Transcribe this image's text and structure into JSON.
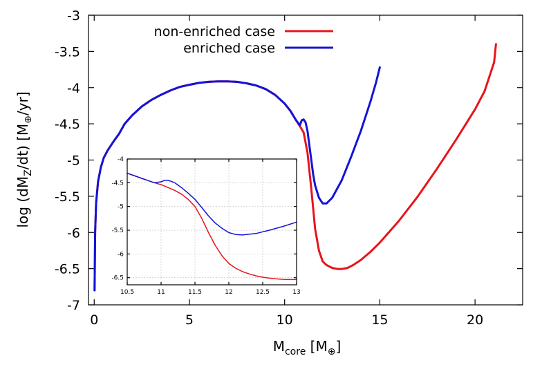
{
  "chart_data": [
    {
      "type": "line",
      "panel": "main",
      "xlabel_main": "M",
      "xlabel_sub": "core",
      "xlabel_unit_open": " [M",
      "xlabel_unit_sub": "⊕",
      "xlabel_unit_close": "]",
      "ylabel_open": "log (dM",
      "ylabel_sub1": "Z",
      "ylabel_mid": "/dt) [M",
      "ylabel_sub2": "⊕",
      "ylabel_close": "/yr]",
      "xlim": [
        -0.3,
        22.5
      ],
      "ylim": [
        -7,
        -3
      ],
      "xticks": [
        0,
        5,
        10,
        15,
        20
      ],
      "xtick_labels": [
        "0",
        "5",
        "10",
        "15",
        "20"
      ],
      "yticks": [
        -7,
        -6.5,
        -6,
        -5.5,
        -5,
        -4.5,
        -4,
        -3.5,
        -3
      ],
      "ytick_labels": [
        "-7",
        "-6.5",
        "-6",
        "-5.5",
        "-5",
        "-4.5",
        "-4",
        "-3.5",
        "-3"
      ],
      "legend_position": "top-left",
      "series": [
        {
          "name": "non-enriched case",
          "color": "#e8141b",
          "x": [
            0.02,
            0.05,
            0.1,
            0.2,
            0.35,
            0.5,
            0.7,
            1.0,
            1.3,
            1.6,
            2.0,
            2.5,
            3.0,
            3.5,
            4.0,
            4.5,
            5.0,
            5.5,
            6.0,
            6.5,
            7.0,
            7.5,
            8.0,
            8.5,
            9.0,
            9.5,
            10.0,
            10.3,
            10.6,
            10.8,
            11.0,
            11.2,
            11.4,
            11.6,
            11.8,
            12.0,
            12.2,
            12.5,
            12.8,
            13.0,
            13.3,
            13.6,
            14.0,
            14.5,
            15.0,
            16.0,
            17.0,
            18.0,
            19.0,
            20.0,
            20.5,
            21.0,
            21.1
          ],
          "y": [
            -6.8,
            -6.0,
            -5.6,
            -5.3,
            -5.1,
            -4.97,
            -4.87,
            -4.75,
            -4.64,
            -4.5,
            -4.38,
            -4.26,
            -4.17,
            -4.1,
            -4.04,
            -3.99,
            -3.96,
            -3.935,
            -3.92,
            -3.915,
            -3.915,
            -3.92,
            -3.94,
            -3.97,
            -4.02,
            -4.1,
            -4.22,
            -4.32,
            -4.45,
            -4.53,
            -4.62,
            -4.9,
            -5.4,
            -5.95,
            -6.25,
            -6.4,
            -6.45,
            -6.49,
            -6.505,
            -6.505,
            -6.49,
            -6.45,
            -6.38,
            -6.27,
            -6.14,
            -5.84,
            -5.5,
            -5.12,
            -4.72,
            -4.3,
            -4.05,
            -3.65,
            -3.4
          ]
        },
        {
          "name": "enriched case",
          "color": "#1414d6",
          "x": [
            0.02,
            0.05,
            0.1,
            0.2,
            0.35,
            0.5,
            0.7,
            1.0,
            1.3,
            1.6,
            2.0,
            2.5,
            3.0,
            3.5,
            4.0,
            4.5,
            5.0,
            5.5,
            6.0,
            6.5,
            7.0,
            7.5,
            8.0,
            8.5,
            9.0,
            9.5,
            10.0,
            10.3,
            10.6,
            10.8,
            10.9,
            11.0,
            11.1,
            11.2,
            11.3,
            11.4,
            11.5,
            11.6,
            11.8,
            12.0,
            12.2,
            12.5,
            13.0,
            13.5,
            14.0,
            14.5,
            14.8,
            15.0
          ],
          "y": [
            -6.8,
            -6.0,
            -5.6,
            -5.3,
            -5.1,
            -4.97,
            -4.87,
            -4.75,
            -4.64,
            -4.5,
            -4.38,
            -4.26,
            -4.17,
            -4.1,
            -4.04,
            -3.99,
            -3.96,
            -3.935,
            -3.92,
            -3.915,
            -3.915,
            -3.92,
            -3.94,
            -3.97,
            -4.02,
            -4.1,
            -4.22,
            -4.32,
            -4.45,
            -4.52,
            -4.45,
            -4.44,
            -4.48,
            -4.6,
            -4.8,
            -5.0,
            -5.2,
            -5.35,
            -5.52,
            -5.6,
            -5.6,
            -5.52,
            -5.28,
            -4.95,
            -4.6,
            -4.2,
            -3.93,
            -3.72
          ]
        }
      ]
    },
    {
      "type": "line",
      "panel": "inset",
      "xlim": [
        10.5,
        13
      ],
      "ylim": [
        -6.65,
        -4
      ],
      "xticks": [
        10.5,
        11,
        11.5,
        12,
        12.5,
        13
      ],
      "xtick_labels": [
        "10.5",
        "11",
        "11.5",
        "12",
        "12.5",
        "13"
      ],
      "yticks": [
        -6.5,
        -6,
        -5.5,
        -5,
        -4.5,
        -4
      ],
      "ytick_labels": [
        "-6.5",
        "-6",
        "-5.5",
        "-5",
        "-4.5",
        "-4"
      ],
      "grid": true,
      "series": [
        {
          "name": "non-enriched case",
          "color": "#e8141b",
          "x": [
            10.5,
            10.6,
            10.7,
            10.8,
            10.9,
            11.0,
            11.1,
            11.2,
            11.3,
            11.4,
            11.5,
            11.6,
            11.7,
            11.8,
            11.9,
            12.0,
            12.1,
            12.2,
            12.3,
            12.4,
            12.5,
            12.6,
            12.7,
            12.8,
            12.9,
            13.0
          ],
          "y": [
            -4.3,
            -4.35,
            -4.4,
            -4.45,
            -4.5,
            -4.54,
            -4.6,
            -4.66,
            -4.74,
            -4.85,
            -5.0,
            -5.25,
            -5.55,
            -5.82,
            -6.04,
            -6.2,
            -6.3,
            -6.37,
            -6.42,
            -6.46,
            -6.49,
            -6.51,
            -6.525,
            -6.535,
            -6.54,
            -6.54
          ]
        },
        {
          "name": "enriched case",
          "color": "#1414d6",
          "x": [
            10.5,
            10.6,
            10.7,
            10.8,
            10.9,
            11.0,
            11.05,
            11.1,
            11.15,
            11.2,
            11.3,
            11.4,
            11.5,
            11.6,
            11.7,
            11.8,
            11.9,
            12.0,
            12.1,
            12.2,
            12.4,
            12.6,
            12.8,
            13.0
          ],
          "y": [
            -4.3,
            -4.35,
            -4.4,
            -4.45,
            -4.5,
            -4.48,
            -4.45,
            -4.45,
            -4.47,
            -4.5,
            -4.6,
            -4.72,
            -4.85,
            -5.02,
            -5.2,
            -5.35,
            -5.46,
            -5.55,
            -5.59,
            -5.6,
            -5.57,
            -5.5,
            -5.42,
            -5.33
          ]
        }
      ]
    }
  ]
}
